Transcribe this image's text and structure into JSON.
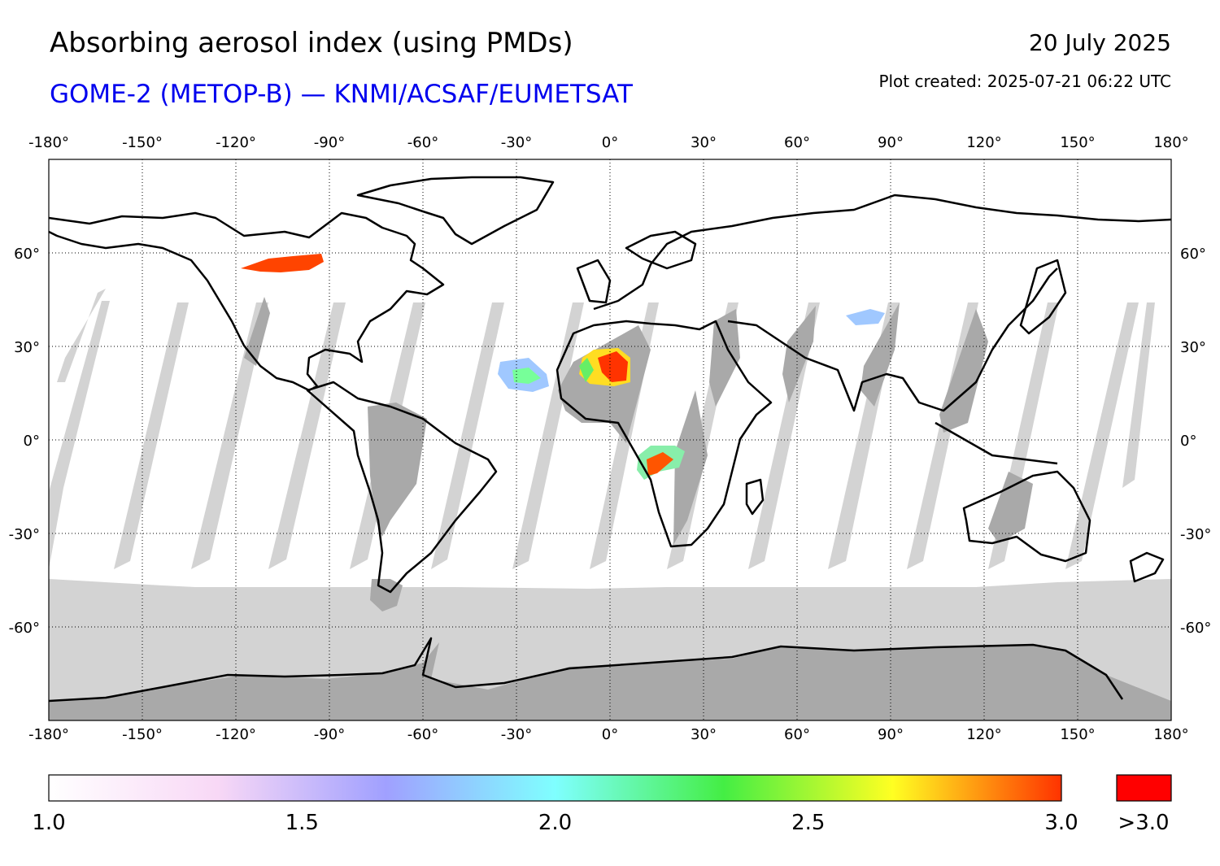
{
  "title": "Absorbing aerosol index (using PMDs)",
  "subtitle": "GOME-2 (METOP-B) — KNMI/ACSAF/EUMETSAT",
  "date": "20 July 2025",
  "plot_created": "Plot created: 2025-07-21 06:22 UTC",
  "map": {
    "projection": "equirectangular",
    "lon_range": [
      -180,
      180
    ],
    "lat_range": [
      -90,
      90
    ],
    "grid": "dotted",
    "no_data_color": "#d3d3d3",
    "night_color": "#a9a9a9",
    "lon_ticks": [
      "-180°",
      "-150°",
      "-120°",
      "-90°",
      "-60°",
      "-30°",
      "0°",
      "30°",
      "60°",
      "90°",
      "120°",
      "150°",
      "180°"
    ],
    "lat_ticks": [
      "60°",
      "30°",
      "0°",
      "-30°",
      "-60°"
    ],
    "lon_values": [
      -180,
      -150,
      -120,
      -90,
      -60,
      -30,
      0,
      30,
      60,
      90,
      120,
      150,
      180
    ],
    "lat_values": [
      60,
      30,
      0,
      -30,
      -60
    ]
  },
  "colorbar": {
    "range": [
      1.0,
      3.0
    ],
    "tick_labels": [
      "1.0",
      "1.5",
      "2.0",
      "2.5",
      "3.0"
    ],
    "tick_values": [
      1.0,
      1.5,
      2.0,
      2.5,
      3.0
    ],
    "overflow_label": ">3.0",
    "overflow_color": "#ff0000",
    "stops": [
      "#ffffff",
      "#f8d8f6",
      "#a0a0ff",
      "#7fffff",
      "#44ee44",
      "#ffff22",
      "#ff3300"
    ]
  }
}
